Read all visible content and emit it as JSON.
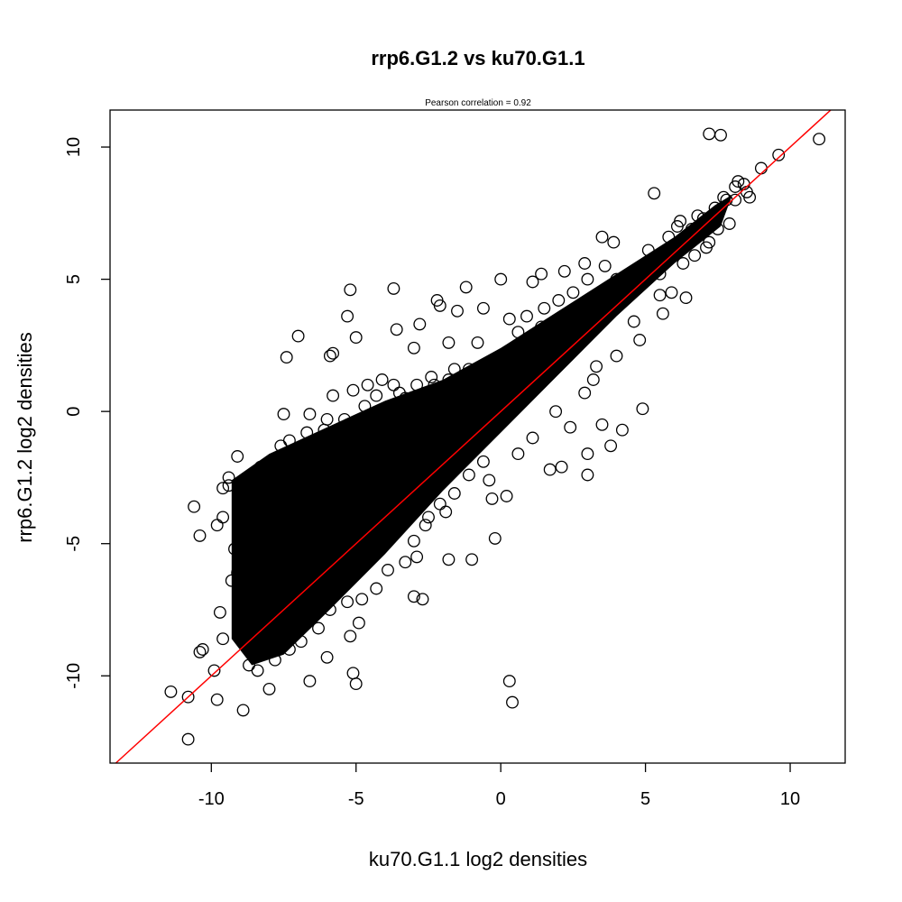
{
  "chart_data": {
    "type": "scatter",
    "title": "rrp6.G1.2 vs ku70.G1.1",
    "subtitle": "Pearson correlation =  0.92",
    "xlabel": "ku70.G1.1 log2 densities",
    "ylabel": "rrp6.G1.2 log2 densities",
    "xlim": [
      -13.5,
      11.9
    ],
    "ylim": [
      -13.3,
      11.4
    ],
    "xticks": [
      -10,
      -5,
      0,
      5,
      10
    ],
    "yticks": [
      -10,
      -5,
      0,
      5,
      10
    ],
    "grid": false,
    "fit_line": {
      "slope": 1.0,
      "intercept": 0.0,
      "color": "#ff0000"
    },
    "point_color": "#000000",
    "points": [
      [
        7.2,
        10.5
      ],
      [
        7.6,
        10.45
      ],
      [
        11.0,
        10.3
      ],
      [
        9.6,
        9.7
      ],
      [
        9.0,
        9.2
      ],
      [
        8.2,
        8.7
      ],
      [
        8.4,
        8.6
      ],
      [
        5.3,
        8.25
      ],
      [
        7.7,
        8.1
      ],
      [
        8.1,
        8.0
      ],
      [
        6.8,
        7.4
      ],
      [
        6.2,
        7.2
      ],
      [
        6.1,
        7.0
      ],
      [
        5.8,
        6.6
      ],
      [
        3.5,
        6.6
      ],
      [
        3.9,
        6.4
      ],
      [
        5.1,
        6.1
      ],
      [
        2.9,
        5.6
      ],
      [
        3.6,
        5.5
      ],
      [
        2.2,
        5.3
      ],
      [
        1.4,
        5.2
      ],
      [
        0.0,
        5.0
      ],
      [
        1.1,
        4.9
      ],
      [
        -1.2,
        4.7
      ],
      [
        -5.2,
        4.6
      ],
      [
        -3.7,
        4.65
      ],
      [
        -2.2,
        4.2
      ],
      [
        -2.1,
        4.0
      ],
      [
        -0.6,
        3.9
      ],
      [
        -1.5,
        3.8
      ],
      [
        -5.3,
        3.6
      ],
      [
        -3.6,
        3.1
      ],
      [
        -2.8,
        3.3
      ],
      [
        -5.0,
        2.8
      ],
      [
        -7.0,
        2.85
      ],
      [
        -5.9,
        2.1
      ],
      [
        -7.4,
        2.05
      ],
      [
        -5.8,
        2.2
      ],
      [
        -3.0,
        2.4
      ],
      [
        -1.8,
        2.6
      ],
      [
        -0.8,
        2.6
      ],
      [
        0.7,
        2.2
      ],
      [
        4.9,
        0.1
      ],
      [
        3.5,
        -0.5
      ],
      [
        4.2,
        -0.7
      ],
      [
        3.0,
        -1.6
      ],
      [
        3.8,
        -1.3
      ],
      [
        1.7,
        -2.2
      ],
      [
        2.1,
        -2.1
      ],
      [
        3.0,
        -2.4
      ],
      [
        0.2,
        -3.2
      ],
      [
        -0.3,
        -3.3
      ],
      [
        -1.9,
        -3.8
      ],
      [
        -0.2,
        -4.8
      ],
      [
        -1.0,
        -5.6
      ],
      [
        -1.8,
        -5.6
      ],
      [
        -2.9,
        -5.5
      ],
      [
        -2.5,
        -4.0
      ],
      [
        -3.0,
        -7.0
      ],
      [
        -2.7,
        -7.1
      ],
      [
        -4.9,
        -8.0
      ],
      [
        -5.2,
        -8.5
      ],
      [
        -6.0,
        -9.3
      ],
      [
        -6.6,
        -10.2
      ],
      [
        -5.0,
        -10.3
      ],
      [
        -5.1,
        -9.9
      ],
      [
        0.3,
        -10.2
      ],
      [
        0.4,
        -11.0
      ],
      [
        -8.0,
        -10.5
      ],
      [
        -8.9,
        -11.3
      ],
      [
        -9.8,
        -10.9
      ],
      [
        -10.8,
        -10.8
      ],
      [
        -11.4,
        -10.6
      ],
      [
        -10.8,
        -12.4
      ],
      [
        -9.9,
        -9.8
      ],
      [
        -10.3,
        -9.0
      ],
      [
        -10.4,
        -9.1
      ],
      [
        -10.4,
        -4.7
      ],
      [
        -10.6,
        -3.6
      ],
      [
        -9.6,
        -4.0
      ],
      [
        -9.8,
        -4.3
      ],
      [
        -9.2,
        -5.2
      ],
      [
        -9.3,
        -6.4
      ],
      [
        -9.7,
        -7.6
      ],
      [
        -9.6,
        -8.6
      ],
      [
        -9.4,
        -2.8
      ],
      [
        -9.6,
        -2.9
      ],
      [
        -9.4,
        -2.5
      ],
      [
        -9.1,
        -1.7
      ],
      [
        -8.3,
        -2.1
      ],
      [
        -8.1,
        -2.2
      ],
      [
        -7.6,
        -1.3
      ],
      [
        -7.3,
        -1.1
      ],
      [
        -6.7,
        -0.8
      ],
      [
        -6.0,
        -0.3
      ],
      [
        -5.8,
        0.6
      ],
      [
        -5.1,
        0.8
      ],
      [
        -4.6,
        1.0
      ],
      [
        -4.1,
        1.2
      ],
      [
        -3.3,
        0.5
      ],
      [
        -3.7,
        1.0
      ],
      [
        -7.5,
        -0.1
      ],
      [
        -6.6,
        -0.1
      ],
      [
        -2.4,
        1.3
      ],
      [
        -1.6,
        1.6
      ],
      [
        -1.1,
        1.6
      ],
      [
        -0.3,
        1.4
      ],
      [
        0.6,
        3.0
      ],
      [
        0.3,
        3.5
      ],
      [
        0.9,
        3.6
      ],
      [
        1.5,
        3.9
      ],
      [
        2.0,
        4.2
      ],
      [
        2.5,
        4.5
      ],
      [
        3.0,
        5.0
      ],
      [
        4.0,
        5.0
      ],
      [
        4.7,
        5.3
      ],
      [
        5.5,
        5.2
      ],
      [
        6.3,
        5.6
      ],
      [
        5.5,
        4.4
      ],
      [
        6.4,
        4.3
      ],
      [
        5.9,
        4.5
      ],
      [
        4.6,
        3.4
      ],
      [
        5.6,
        3.7
      ],
      [
        6.7,
        5.9
      ],
      [
        7.2,
        6.4
      ],
      [
        7.9,
        7.1
      ],
      [
        8.5,
        8.3
      ],
      [
        8.6,
        8.1
      ],
      [
        7.5,
        6.9
      ],
      [
        7.1,
        6.2
      ],
      [
        6.8,
        6.7
      ],
      [
        4.0,
        2.1
      ],
      [
        4.8,
        2.7
      ],
      [
        3.3,
        1.7
      ],
      [
        3.2,
        1.2
      ],
      [
        2.9,
        0.7
      ],
      [
        1.9,
        0.0
      ],
      [
        2.4,
        -0.6
      ],
      [
        1.1,
        -1.0
      ],
      [
        0.6,
        -1.6
      ],
      [
        -0.6,
        -1.9
      ],
      [
        -0.4,
        -2.6
      ],
      [
        -1.1,
        -2.4
      ],
      [
        -1.6,
        -3.1
      ],
      [
        -2.1,
        -3.5
      ],
      [
        -2.6,
        -4.3
      ],
      [
        -3.0,
        -4.9
      ],
      [
        -3.3,
        -5.7
      ],
      [
        -3.9,
        -6.0
      ],
      [
        -4.3,
        -6.7
      ],
      [
        -4.8,
        -7.1
      ],
      [
        -5.3,
        -7.2
      ],
      [
        -5.9,
        -7.5
      ],
      [
        -6.3,
        -8.2
      ],
      [
        -6.9,
        -8.7
      ],
      [
        -7.3,
        -9.0
      ],
      [
        -7.8,
        -9.4
      ],
      [
        -8.4,
        -9.8
      ],
      [
        -8.7,
        -9.6
      ],
      [
        -8.3,
        -8.8
      ],
      [
        -8.8,
        -8.4
      ],
      [
        -9.0,
        -7.1
      ],
      [
        -9.1,
        -6.1
      ],
      [
        -8.9,
        -4.6
      ],
      [
        -8.7,
        -3.9
      ],
      [
        -8.5,
        -3.2
      ],
      [
        -7.9,
        -2.4
      ],
      [
        -7.2,
        -1.8
      ],
      [
        -6.5,
        -1.3
      ],
      [
        -6.1,
        -0.7
      ],
      [
        -5.4,
        -0.3
      ],
      [
        -4.7,
        0.2
      ],
      [
        -4.3,
        0.6
      ],
      [
        -3.5,
        0.7
      ],
      [
        -2.9,
        1.0
      ],
      [
        -2.3,
        1.0
      ],
      [
        -1.8,
        1.2
      ],
      [
        -1.2,
        1.4
      ],
      [
        -0.6,
        1.6
      ],
      [
        0.0,
        2.1
      ],
      [
        0.5,
        2.4
      ],
      [
        1.0,
        2.8
      ],
      [
        1.4,
        3.2
      ],
      [
        2.2,
        3.6
      ],
      [
        2.7,
        3.9
      ],
      [
        3.3,
        4.4
      ],
      [
        3.8,
        4.6
      ],
      [
        4.3,
        4.8
      ],
      [
        5.0,
        5.6
      ],
      [
        5.6,
        6.0
      ],
      [
        6.0,
        6.3
      ],
      [
        6.6,
        6.9
      ],
      [
        7.0,
        7.3
      ],
      [
        7.4,
        7.7
      ],
      [
        7.8,
        8.0
      ],
      [
        8.1,
        8.5
      ]
    ]
  }
}
